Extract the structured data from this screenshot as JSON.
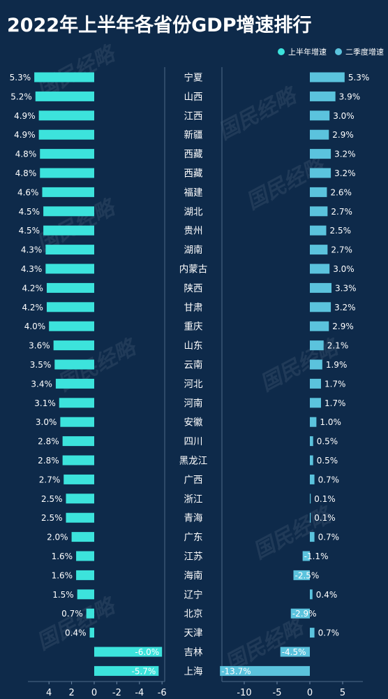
{
  "title": "2022年上半年各省份GDP增速排行",
  "legend": [
    {
      "label": "上半年增速",
      "color": "#3ce3dc"
    },
    {
      "label": "二季度增速",
      "color": "#5bc3dd"
    }
  ],
  "watermark": "国民经略",
  "chart_data": {
    "type": "bar",
    "orientation": "horizontal",
    "categories": [
      "宁夏",
      "山西",
      "江西",
      "新疆",
      "西藏",
      "西藏",
      "福建",
      "湖北",
      "贵州",
      "湖南",
      "内蒙古",
      "陕西",
      "甘肃",
      "重庆",
      "山东",
      "云南",
      "河北",
      "河南",
      "安徽",
      "四川",
      "黑龙江",
      "广西",
      "浙江",
      "青海",
      "广东",
      "江苏",
      "海南",
      "辽宁",
      "北京",
      "天津",
      "吉林",
      "上海"
    ],
    "series": [
      {
        "name": "上半年增速",
        "color": "#3ce3dc",
        "values": [
          5.3,
          5.2,
          4.9,
          4.9,
          4.8,
          4.8,
          4.6,
          4.5,
          4.5,
          4.3,
          4.3,
          4.2,
          4.2,
          4.0,
          3.6,
          3.5,
          3.4,
          3.1,
          3.0,
          2.8,
          2.8,
          2.7,
          2.5,
          2.5,
          2.0,
          1.6,
          1.6,
          1.5,
          0.7,
          0.4,
          -6.0,
          -5.7
        ],
        "labels": [
          "5.3%",
          "5.2%",
          "4.9%",
          "4.9%",
          "4.8%",
          "4.8%",
          "4.6%",
          "4.5%",
          "4.5%",
          "4.3%",
          "4.3%",
          "4.2%",
          "4.2%",
          "4.0%",
          "3.6%",
          "3.5%",
          "3.4%",
          "3.1%",
          "3.0%",
          "2.8%",
          "2.8%",
          "2.7%",
          "2.5%",
          "2.5%",
          "2.0%",
          "1.6%",
          "1.6%",
          "1.5%",
          "0.7%",
          "0.4%",
          "-6.0%",
          "-5.7%"
        ],
        "axis_ticks": [
          4,
          2,
          0,
          -2,
          -4,
          -6
        ],
        "axis_tick_labels": [
          "4",
          "2",
          "0",
          "-2",
          "-4",
          "-6"
        ],
        "axis_reversed": true
      },
      {
        "name": "二季度增速",
        "color": "#5bc3dd",
        "values": [
          5.3,
          3.9,
          3.0,
          2.9,
          3.2,
          3.2,
          2.6,
          2.7,
          2.5,
          2.7,
          3.0,
          3.3,
          3.2,
          2.9,
          2.1,
          1.9,
          1.7,
          1.7,
          1.0,
          0.5,
          0.5,
          0.7,
          0.1,
          0.1,
          0.7,
          -1.1,
          -2.5,
          0.4,
          -2.9,
          0.7,
          -4.5,
          -13.7
        ],
        "labels": [
          "5.3%",
          "3.9%",
          "3.0%",
          "2.9%",
          "3.2%",
          "3.2%",
          "2.6%",
          "2.7%",
          "2.5%",
          "2.7%",
          "3.0%",
          "3.3%",
          "3.2%",
          "2.9%",
          "2.1%",
          "1.9%",
          "1.7%",
          "1.7%",
          "1.0%",
          "0.5%",
          "0.5%",
          "0.7%",
          "0.1%",
          "0.1%",
          "0.7%",
          "-1.1%",
          "-2.5%",
          "0.4%",
          "-2.9%",
          "0.7%",
          "-4.5%",
          "-13.7%"
        ],
        "axis_ticks": [
          -10,
          -5,
          0,
          5
        ],
        "axis_tick_labels": [
          "-10",
          "-5",
          "0",
          "5"
        ],
        "axis_reversed": false
      }
    ]
  }
}
